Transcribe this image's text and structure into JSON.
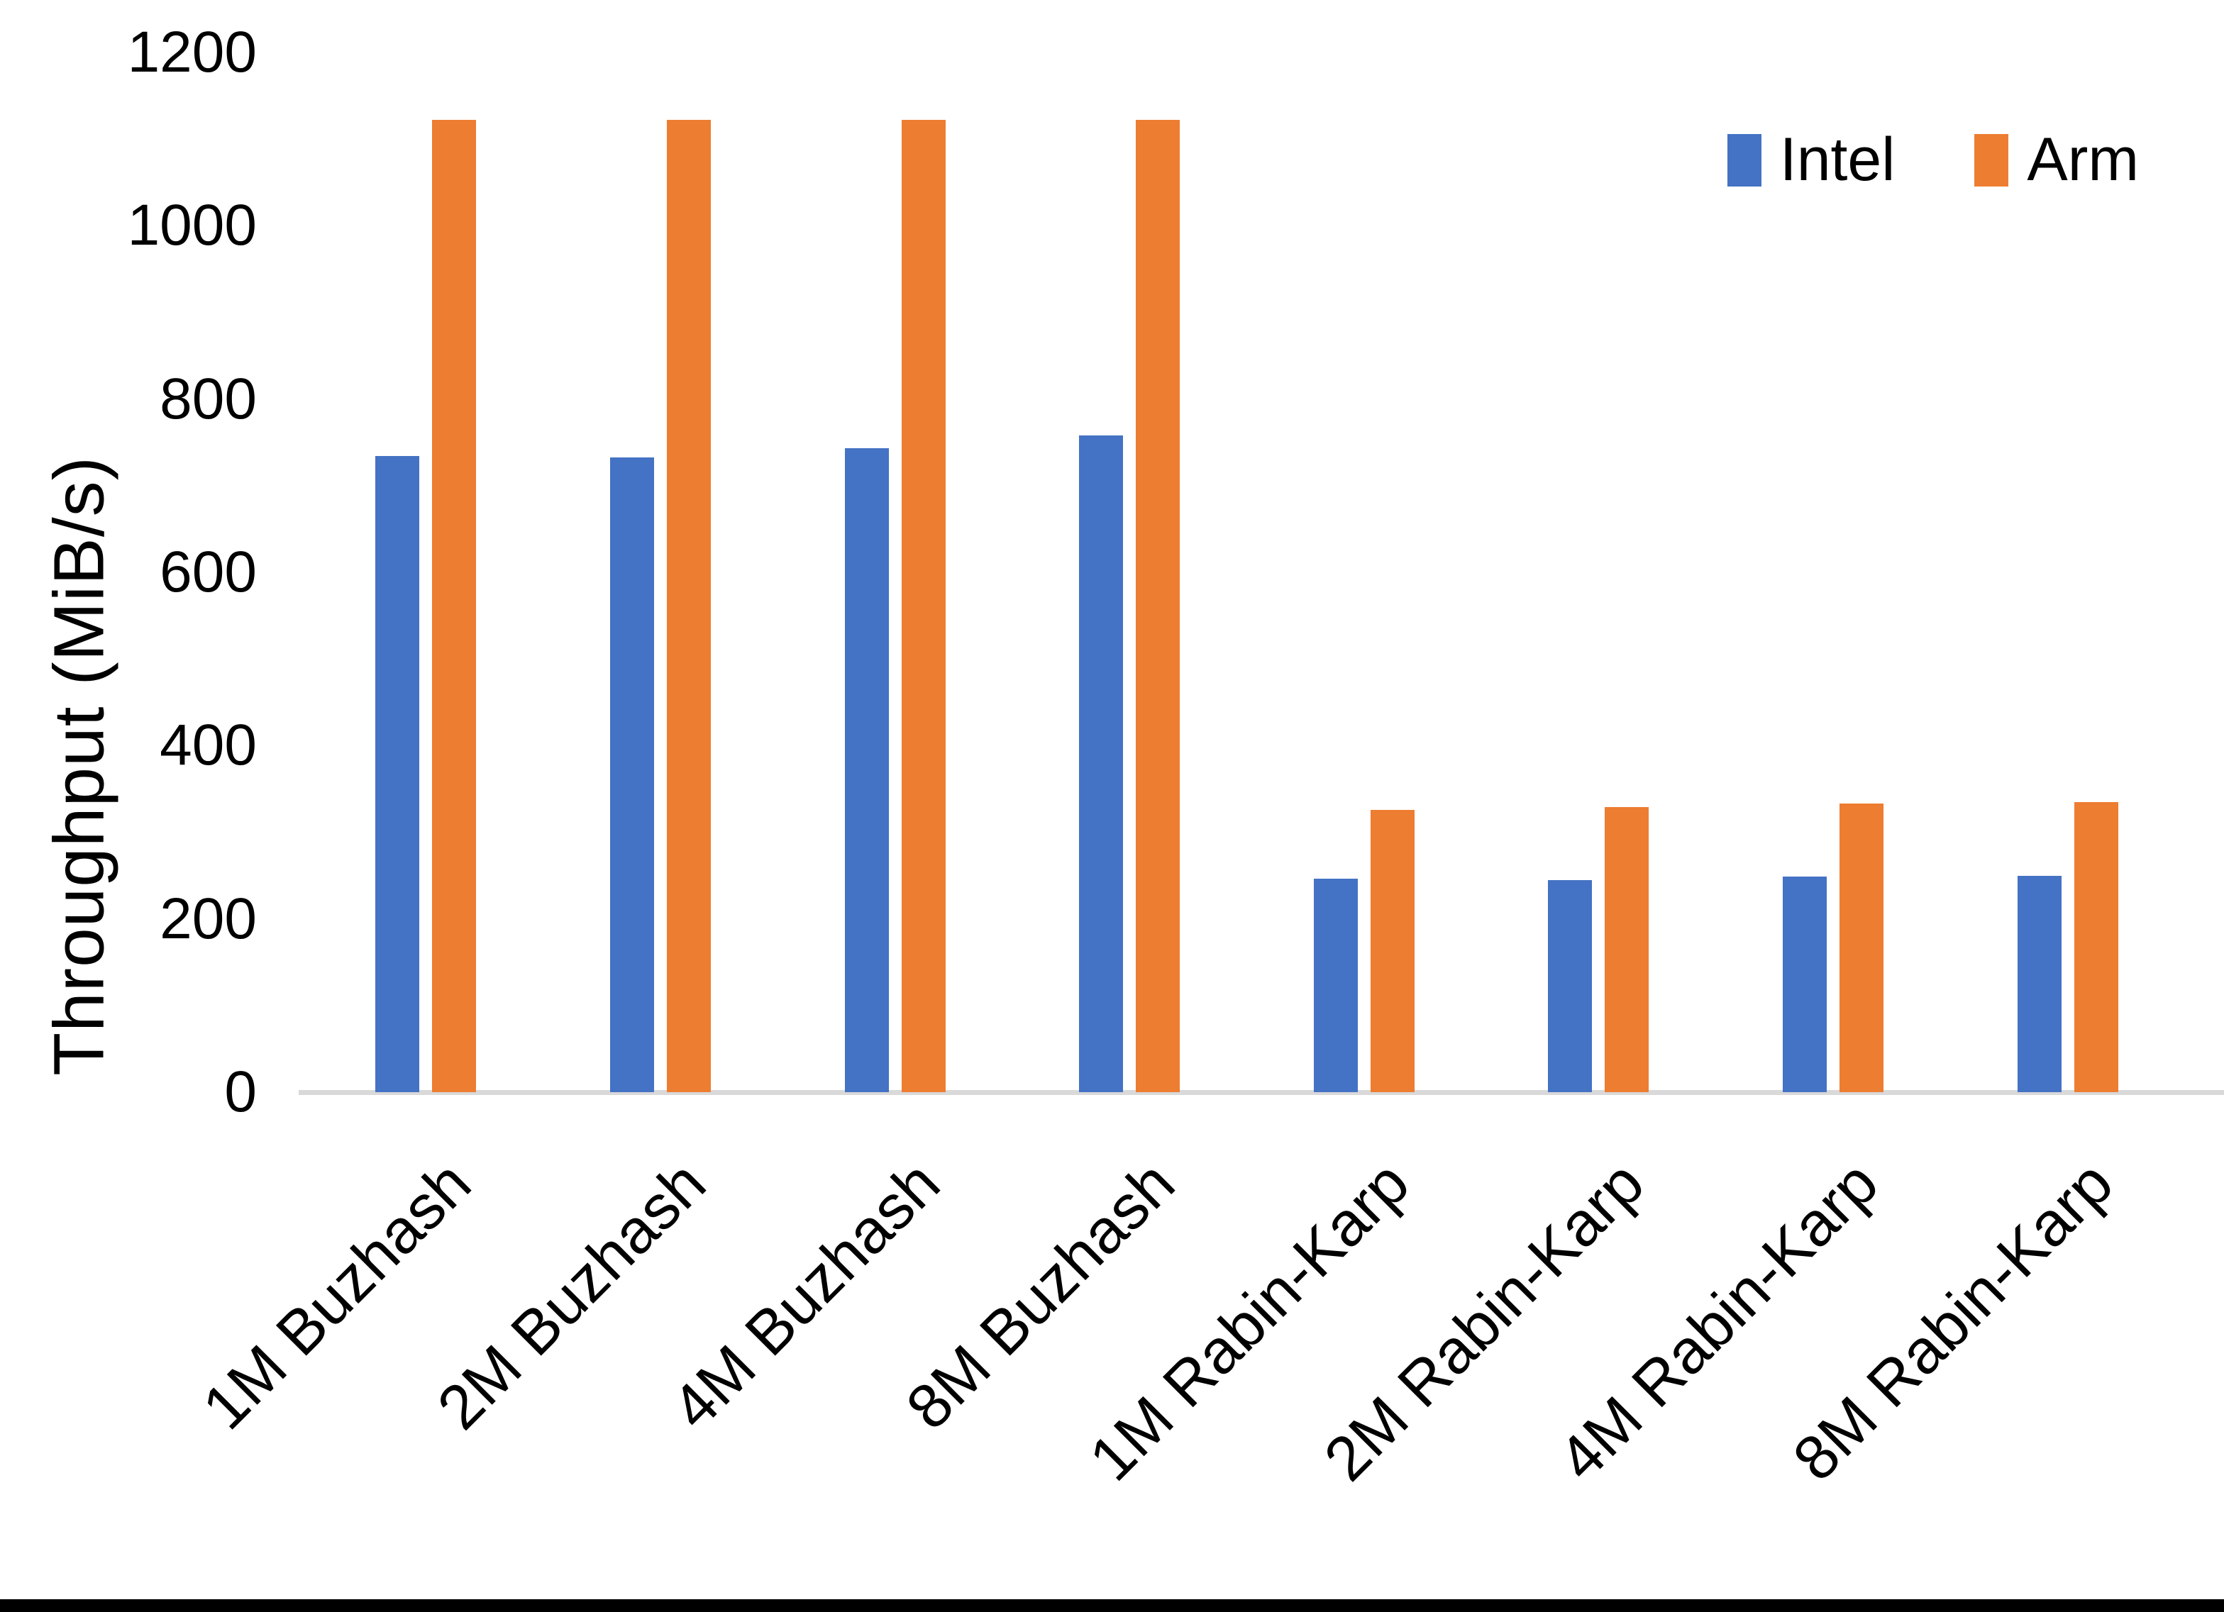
{
  "chart_data": {
    "type": "bar",
    "title": "",
    "xlabel": "",
    "ylabel": "Throughput (MiB/s)",
    "ylim": [
      0,
      1200
    ],
    "yticks": [
      0,
      200,
      400,
      600,
      800,
      1000,
      1200
    ],
    "grid": false,
    "legend_position": "top-right",
    "categories": [
      "1M Buzhash",
      "2M Buzhash",
      "4M Buzhash",
      "8M Buzhash",
      "1M Rabin-Karp",
      "2M Rabin-Karp",
      "4M Rabin-Karp",
      "8M Rabin-Karp"
    ],
    "series": [
      {
        "name": "Intel",
        "color": "#4472C4",
        "values": [
          734,
          733,
          743,
          758,
          246,
          245,
          249,
          250
        ]
      },
      {
        "name": "Arm",
        "color": "#ED7D31",
        "values": [
          1122,
          1122,
          1122,
          1122,
          326,
          329,
          333,
          335
        ]
      }
    ]
  },
  "colors": {
    "background": "#FFFFFF",
    "axis_line": "#D9D9D9",
    "text": "#000000",
    "bottom_bar": "#000000"
  }
}
